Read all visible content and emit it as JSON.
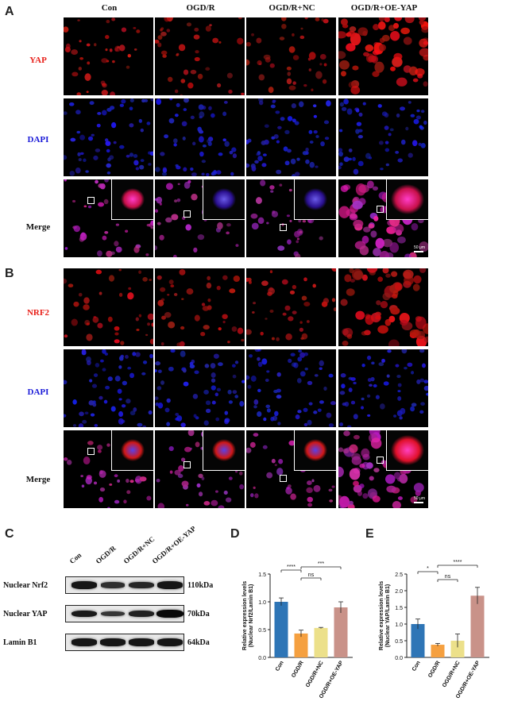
{
  "figure": {
    "panels": {
      "A": "A",
      "B": "B",
      "C": "C",
      "D": "D",
      "E": "E"
    },
    "columns": [
      "Con",
      "OGD/R",
      "OGD/R+NC",
      "OGD/R+OE-YAP"
    ],
    "panelA_rows": [
      {
        "label": "YAP",
        "color": "#e8201a"
      },
      {
        "label": "DAPI",
        "color": "#1a1ad8"
      },
      {
        "label": "Merge",
        "color": "#111111"
      }
    ],
    "panelB_rows": [
      {
        "label": "NRF2",
        "color": "#e8201a"
      },
      {
        "label": "DAPI",
        "color": "#1a1ad8"
      },
      {
        "label": "Merge",
        "color": "#111111"
      }
    ],
    "scalebar_label": "50 μm",
    "western_blot": {
      "lanes": [
        "Con",
        "OGD/R",
        "OGD/R+NC",
        "OGD/R+OE-YAP"
      ],
      "rows": [
        {
          "label": "Nuclear Nrf2",
          "size": "110kDa",
          "intensities": [
            0.85,
            0.55,
            0.65,
            0.85
          ]
        },
        {
          "label": "Nuclear YAP",
          "size": "70kDa",
          "intensities": [
            0.8,
            0.45,
            0.7,
            1.0
          ]
        },
        {
          "label": "Lamin B1",
          "size": "64kDa",
          "intensities": [
            0.85,
            0.85,
            0.85,
            0.85
          ]
        }
      ]
    }
  },
  "chart_data": [
    {
      "type": "bar",
      "panel": "D",
      "categories": [
        "Con",
        "OGD/R",
        "OGD/R+NC",
        "OGD/R+OE-YAP"
      ],
      "values": [
        1.0,
        0.43,
        0.53,
        0.9
      ],
      "errors": [
        0.07,
        0.06,
        0.01,
        0.1
      ],
      "colors": [
        "#2e75b6",
        "#f5a040",
        "#ece08a",
        "#c99289"
      ],
      "ylabel": "Relative expression levels\n(Nuclear Nrf2/Lamin B1)",
      "ylabel_line1": "Relative expression levels",
      "ylabel_line2": "(Nuclear Nrf2/Lamin B1)",
      "ylim": [
        0,
        1.5
      ],
      "yticks": [
        "0.0",
        "0.5",
        "1.0",
        "1.5"
      ],
      "ytick_values": [
        0,
        0.5,
        1.0,
        1.5
      ],
      "significance": [
        {
          "from": 0,
          "to": 1,
          "label": "****"
        },
        {
          "from": 1,
          "to": 2,
          "label": "ns"
        },
        {
          "from": 1,
          "to": 3,
          "label": "***"
        }
      ]
    },
    {
      "type": "bar",
      "panel": "E",
      "categories": [
        "Con",
        "OGD/R",
        "OGD/R+NC",
        "OGD/R+OE-YAP"
      ],
      "values": [
        1.0,
        0.38,
        0.5,
        1.85
      ],
      "errors": [
        0.15,
        0.04,
        0.2,
        0.25
      ],
      "colors": [
        "#2e75b6",
        "#f5a040",
        "#ece08a",
        "#c99289"
      ],
      "ylabel": "Relative expression levels\n(Nuclear YAP/Lamin B1)",
      "ylabel_line1": "Relative expression levels",
      "ylabel_line2": "(Nuclear YAP/Lamin B1)",
      "ylim": [
        0,
        2.5
      ],
      "yticks": [
        "0.0",
        "0.5",
        "1.0",
        "1.5",
        "2.0",
        "2.5"
      ],
      "ytick_values": [
        0,
        0.5,
        1.0,
        1.5,
        2.0,
        2.5
      ],
      "significance": [
        {
          "from": 0,
          "to": 1,
          "label": "*"
        },
        {
          "from": 1,
          "to": 2,
          "label": "ns"
        },
        {
          "from": 1,
          "to": 3,
          "label": "****"
        }
      ]
    }
  ]
}
